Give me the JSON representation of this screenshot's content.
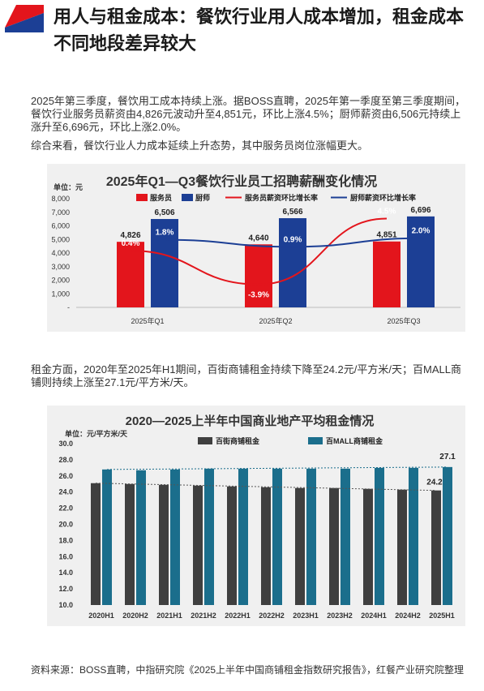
{
  "header": {
    "title": "用人与租金成本：餐饮行业用人成本增加，租金成本不同地段差异较大"
  },
  "paragraphs": {
    "p1": "2025年第三季度，餐饮用工成本持续上涨。据BOSS直聘，2025年第一季度至第三季度期间，餐饮行业服务员薪资由4,826元波动升至4,851元，环比上涨4.5%；厨师薪资由6,506元持续上涨升至6,696元，环比上涨2.0%。",
    "p2": "综合来看，餐饮行业人力成本延续上升态势，其中服务员岗位涨幅更大。",
    "p3": "租金方面，2020年至2025年H1期间，百街商铺租金持续下降至24.2元/平方米/天；百MALL商铺则持续上涨至27.1元/平方米/天。"
  },
  "colors": {
    "brand_red": "#e3151c",
    "brand_blue": "#1c3f95",
    "bar_gray": "#3f3f3f",
    "bar_teal": "#1b6e8c"
  },
  "chart_data": [
    {
      "type": "bar",
      "title": "2025年Q1—Q3餐饮行业员工招聘薪酬变化情况",
      "unit_label": "单位：元",
      "categories": [
        "2025年Q1",
        "2025年Q2",
        "2025年Q3"
      ],
      "series": [
        {
          "name": "服务员",
          "values": [
            4826,
            4640,
            4851
          ],
          "labels": [
            "4,826",
            "4,640",
            "4,851"
          ],
          "color": "#e3151c"
        },
        {
          "name": "厨师",
          "values": [
            6506,
            6566,
            6696
          ],
          "labels": [
            "6,506",
            "6,566",
            "6,696"
          ],
          "color": "#1c3f95"
        }
      ],
      "lines": [
        {
          "name": "服务员薪资环比增长率",
          "values": [
            0.4,
            -3.9,
            4.5
          ],
          "labels": [
            "0.4%",
            "-3.9%",
            "4.5%"
          ],
          "color": "#e3151c"
        },
        {
          "name": "厨师薪资环比增长率",
          "values": [
            1.8,
            0.9,
            2.0
          ],
          "labels": [
            "1.8%",
            "0.9%",
            "2.0%"
          ],
          "color": "#1c3f95"
        }
      ],
      "yticks": [
        "8,000",
        "7,000",
        "6,000",
        "5,000",
        "4,000",
        "3,000",
        "2,000",
        "1,000",
        "-"
      ],
      "ylim": [
        0,
        8000
      ],
      "legend": "top"
    },
    {
      "type": "bar",
      "title": "2020—2025上半年中国商业地产平均租金情况",
      "unit_label": "单位：元/平方米/天",
      "categories": [
        "2020H1",
        "2020H2",
        "2021H1",
        "2021H2",
        "2022H1",
        "2022H2",
        "2023H1",
        "2023H2",
        "2024H1",
        "2024H2",
        "2025H1"
      ],
      "series": [
        {
          "name": "百街商铺租金",
          "values": [
            25.1,
            25.0,
            24.9,
            24.8,
            24.7,
            24.6,
            24.5,
            24.5,
            24.4,
            24.3,
            24.2
          ],
          "color": "#3f3f3f"
        },
        {
          "name": "百MALL商铺租金",
          "values": [
            26.8,
            26.7,
            26.8,
            26.9,
            26.9,
            26.9,
            26.9,
            26.9,
            27.0,
            27.0,
            27.1
          ],
          "color": "#1b6e8c"
        }
      ],
      "value_labels": {
        "last_gray": "24.2",
        "last_teal": "27.1"
      },
      "yticks": [
        "30.0",
        "28.0",
        "26.0",
        "24.0",
        "22.0",
        "20.0",
        "18.0",
        "16.0",
        "14.0",
        "12.0",
        "10.0"
      ],
      "ylim": [
        10,
        30
      ],
      "legend": "top"
    }
  ],
  "source": "资料来源：BOSS直聘，中指研究院《2025上半年中国商铺租金指数研究报告》，红餐产业研究院整理"
}
